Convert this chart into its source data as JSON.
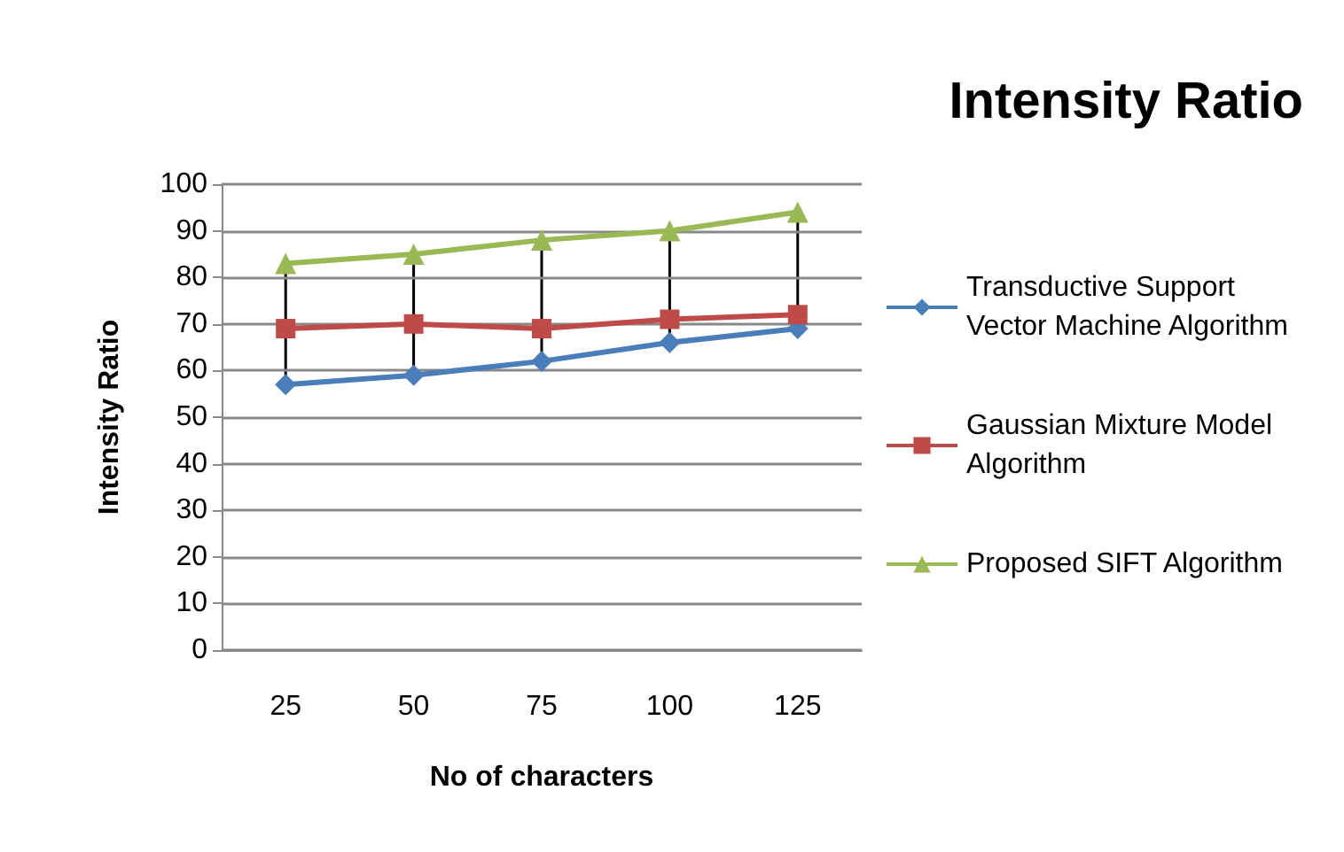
{
  "chart_data": {
    "type": "line",
    "title": "Intensity Ratio",
    "xlabel": "No of characters",
    "ylabel": "Intensity Ratio",
    "categories": [
      "25",
      "50",
      "75",
      "100",
      "125"
    ],
    "series": [
      {
        "name": "Transductive Support Vector Machine Algorithm",
        "color": "#4a7ebb",
        "marker": "diamond",
        "values": [
          57,
          59,
          62,
          66,
          69
        ]
      },
      {
        "name": "Gaussian Mixture Model Algorithm",
        "color": "#be4b48",
        "marker": "square",
        "values": [
          69,
          70,
          69,
          71,
          72
        ]
      },
      {
        "name": "Proposed SIFT Algorithm",
        "color": "#98b954",
        "marker": "triangle",
        "values": [
          83,
          85,
          88,
          90,
          94
        ]
      }
    ],
    "ylim": [
      0,
      100
    ],
    "yticks": [
      0,
      10,
      20,
      30,
      40,
      50,
      60,
      70,
      80,
      90,
      100
    ],
    "grid": "y",
    "legend": "right"
  }
}
